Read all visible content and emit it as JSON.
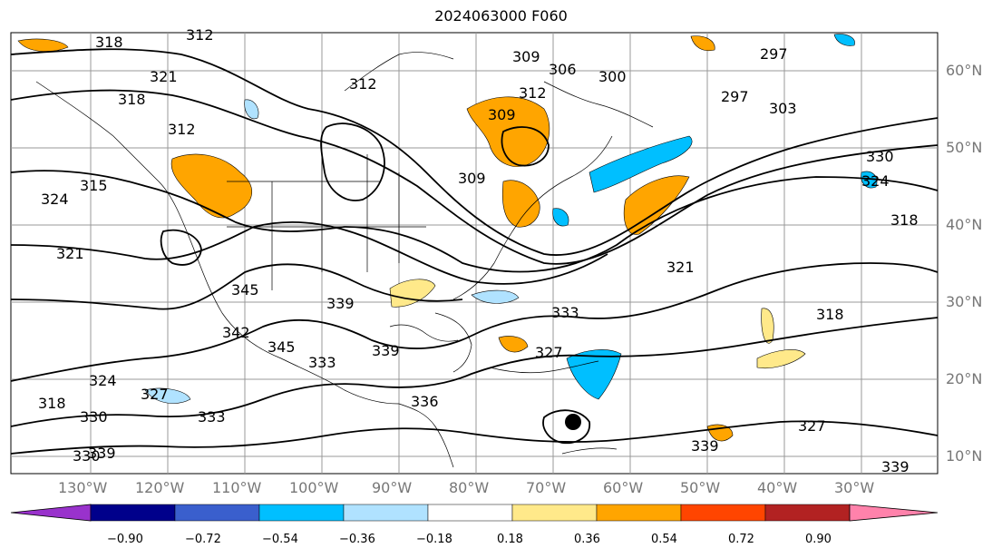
{
  "title": "2024063000 F060",
  "lat_labels": [
    "60°N",
    "50°N",
    "40°N",
    "30°N",
    "20°N",
    "10°N"
  ],
  "lon_labels": [
    "130°W",
    "120°W",
    "110°W",
    "100°W",
    "90°W",
    "80°W",
    "70°W",
    "60°W",
    "50°W",
    "40°W",
    "30°W"
  ],
  "contour_labels": [
    "318",
    "312",
    "321",
    "318",
    "312",
    "315",
    "324",
    "321",
    "312",
    "309",
    "306",
    "300",
    "297",
    "297",
    "303",
    "309",
    "312",
    "330",
    "324",
    "318",
    "318",
    "309",
    "321",
    "345",
    "339",
    "345",
    "342",
    "333",
    "339",
    "333",
    "327",
    "336",
    "327",
    "324",
    "330",
    "333",
    "318",
    "339",
    "330",
    "339",
    "327",
    "339"
  ],
  "colorbar": {
    "ticks": [
      "−0.90",
      "−0.72",
      "−0.54",
      "−0.36",
      "−0.18",
      "0.18",
      "0.36",
      "0.54",
      "0.72",
      "0.90"
    ],
    "colors": [
      "#9932cc",
      "#00008b",
      "#3a5fcd",
      "#00bfff",
      "#b0e2ff",
      "#ffffff",
      "#ffe98a",
      "#ffa500",
      "#ff4500",
      "#b22222",
      "#ff82ab"
    ]
  }
}
